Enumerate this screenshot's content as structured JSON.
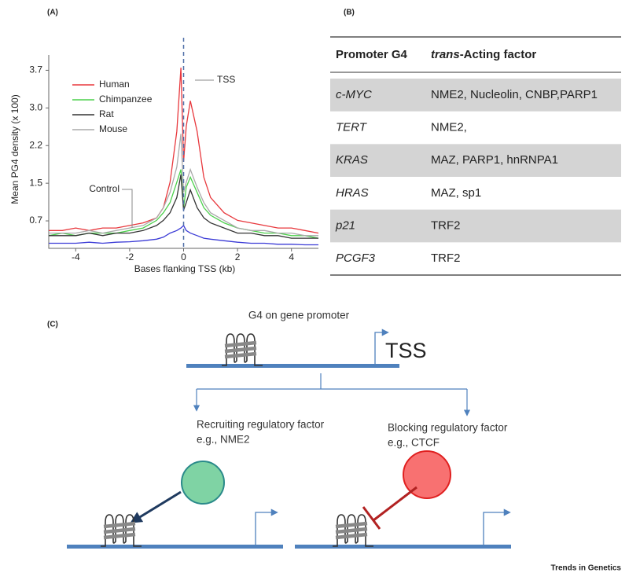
{
  "labels": {
    "a": "(A)",
    "b": "(B)",
    "c": "(C)"
  },
  "chart_data": {
    "type": "line",
    "x_label": "Bases flanking TSS (kb)",
    "y_label": "Mean PG4 density (x 100)",
    "annotations": [
      "TSS",
      "Control"
    ],
    "legend": "upper left",
    "xlim": [
      -5,
      5
    ],
    "ylim": [
      0.2,
      4.0
    ],
    "xticks": [
      -4,
      -2,
      0,
      2,
      4
    ],
    "yticks": [
      {
        "value": 0.74,
        "label": "0.7"
      },
      {
        "value": 1.48,
        "label": "1.5"
      },
      {
        "value": 2.22,
        "label": "2.2"
      },
      {
        "value": 2.96,
        "label": "3.0"
      },
      {
        "value": 3.7,
        "label": "3.7"
      }
    ],
    "x": [
      -5,
      -4.5,
      -4,
      -3.5,
      -3,
      -2.5,
      -2,
      -1.5,
      -1,
      -0.75,
      -0.5,
      -0.25,
      -0.1,
      0,
      0.1,
      0.25,
      0.5,
      0.75,
      1,
      1.5,
      2,
      2.5,
      3,
      3.5,
      4,
      4.5,
      5
    ],
    "series": [
      {
        "name": "Human",
        "color": "#e8383d",
        "values": [
          0.55,
          0.55,
          0.6,
          0.55,
          0.6,
          0.6,
          0.65,
          0.7,
          0.8,
          1.0,
          1.5,
          2.5,
          3.75,
          1.9,
          2.6,
          3.1,
          2.5,
          1.6,
          1.2,
          0.9,
          0.75,
          0.7,
          0.65,
          0.6,
          0.6,
          0.55,
          0.5
        ]
      },
      {
        "name": "Chimpanzee",
        "color": "#4cd04c",
        "values": [
          0.45,
          0.5,
          0.45,
          0.5,
          0.5,
          0.5,
          0.55,
          0.6,
          0.75,
          0.9,
          1.1,
          1.5,
          1.75,
          1.0,
          1.4,
          1.6,
          1.3,
          1.0,
          0.85,
          0.7,
          0.6,
          0.55,
          0.5,
          0.5,
          0.45,
          0.45,
          0.4
        ]
      },
      {
        "name": "Rat",
        "color": "#333333",
        "values": [
          0.45,
          0.45,
          0.45,
          0.5,
          0.45,
          0.5,
          0.5,
          0.55,
          0.65,
          0.75,
          0.9,
          1.2,
          1.65,
          0.95,
          1.1,
          1.35,
          1.0,
          0.8,
          0.7,
          0.6,
          0.5,
          0.5,
          0.45,
          0.45,
          0.4,
          0.4,
          0.4
        ]
      },
      {
        "name": "Mouse",
        "color": "#aaaaaa",
        "values": [
          0.5,
          0.5,
          0.5,
          0.55,
          0.5,
          0.55,
          0.6,
          0.65,
          0.8,
          1.0,
          1.3,
          1.8,
          2.45,
          1.3,
          1.5,
          1.75,
          1.4,
          1.1,
          0.9,
          0.75,
          0.6,
          0.55,
          0.55,
          0.5,
          0.5,
          0.45,
          0.45
        ]
      },
      {
        "color": "#3b3bd6",
        "values": [
          0.3,
          0.3,
          0.3,
          0.32,
          0.3,
          0.32,
          0.33,
          0.35,
          0.38,
          0.42,
          0.5,
          0.55,
          0.6,
          0.65,
          0.55,
          0.5,
          0.45,
          0.4,
          0.38,
          0.35,
          0.32,
          0.3,
          0.3,
          0.28,
          0.28,
          0.27,
          0.27
        ]
      }
    ]
  },
  "table": {
    "header": [
      "Promoter G4",
      [
        "trans",
        "-Acting factor"
      ]
    ],
    "rows": [
      [
        "c-MYC",
        "NME2, Nucleolin, CNBP,PARP1"
      ],
      [
        "TERT",
        "NME2,"
      ],
      [
        "KRAS",
        "MAZ, PARP1, hnRNPA1"
      ],
      [
        "HRAS",
        "MAZ, sp1"
      ],
      [
        "p21",
        "TRF2"
      ],
      [
        "PCGF3",
        "TRF2"
      ]
    ]
  },
  "diagram": {
    "top_label": "G4 on gene promoter",
    "tss": "TSS",
    "left": {
      "title": "Recruiting regulatory factor",
      "example": "e.g., NME2"
    },
    "right": {
      "title": "Blocking regulatory factor",
      "example": "e.g., CTCF"
    }
  },
  "credit": "Trends in Genetics"
}
